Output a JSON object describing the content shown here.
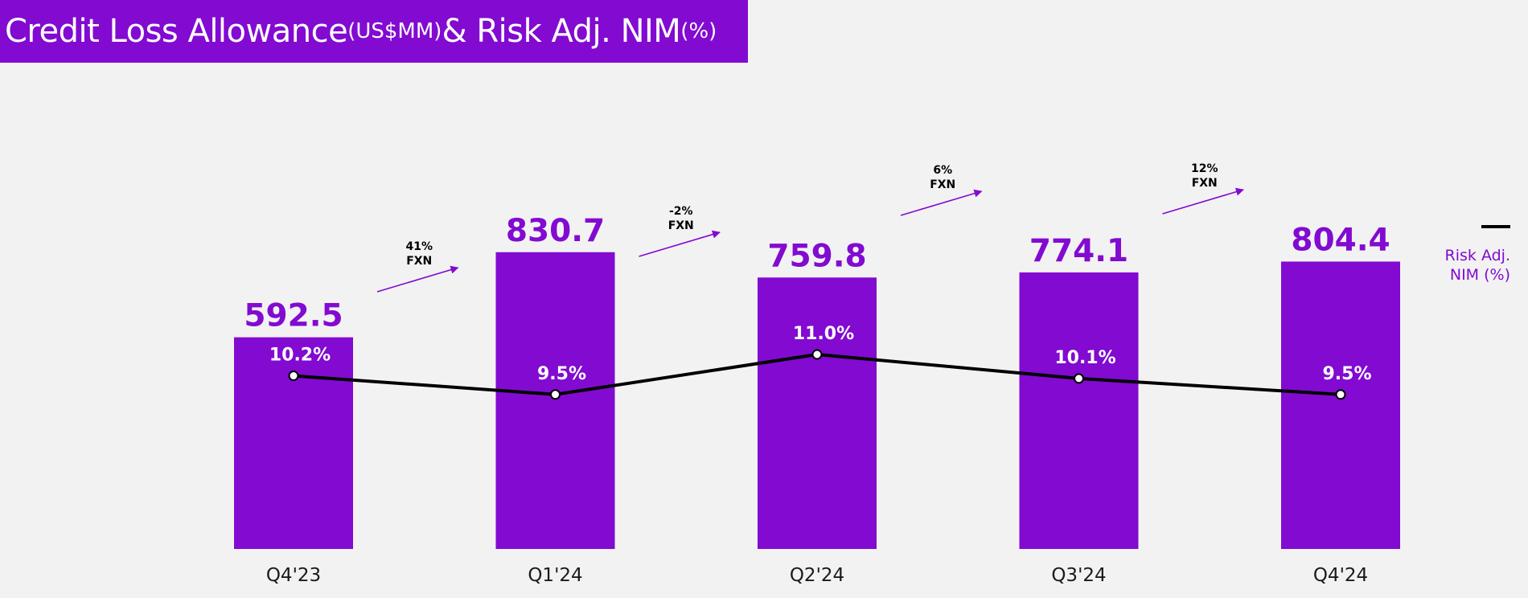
{
  "header": {
    "title_main": "Credit Loss Allowance",
    "title_unit": "(US$MM)",
    "title_second": "& Risk Adj. NIM",
    "title_pct": "(%)"
  },
  "legend": {
    "line_label": "Risk Adj. NIM (%)"
  },
  "colors": {
    "brand_purple": "#820ad1",
    "background": "#f2f2f2",
    "line": "#000000",
    "white": "#ffffff"
  },
  "chart_data": {
    "type": "bar",
    "categories": [
      "Q4'23",
      "Q1'24",
      "Q2'24",
      "Q3'24",
      "Q4'24"
    ],
    "series": [
      {
        "type": "bar",
        "values": [
          592.5,
          830.7,
          759.8,
          774.1,
          804.4
        ],
        "labels": [
          "592.5",
          "830.7",
          "759.8",
          "774.1",
          "804.4"
        ]
      },
      {
        "name": "Risk Adj. NIM (%)",
        "type": "line",
        "values": [
          10.2,
          9.5,
          11.0,
          10.1,
          9.5
        ],
        "labels": [
          "10.2%",
          "9.5%",
          "11.0%",
          "10.1%",
          "9.5%"
        ]
      }
    ],
    "growth_annotations": [
      {
        "from": "Q4'23",
        "to": "Q1'24",
        "pct": "41%",
        "basis": "FXN"
      },
      {
        "from": "Q1'24",
        "to": "Q2'24",
        "pct": "-2%",
        "basis": "FXN"
      },
      {
        "from": "Q2'24",
        "to": "Q3'24",
        "pct": "6%",
        "basis": "FXN"
      },
      {
        "from": "Q3'24",
        "to": "Q4'24",
        "pct": "12%",
        "basis": "FXN"
      }
    ],
    "ylim": [
      0,
      1000
    ],
    "grid": false,
    "legend_position": "right"
  }
}
